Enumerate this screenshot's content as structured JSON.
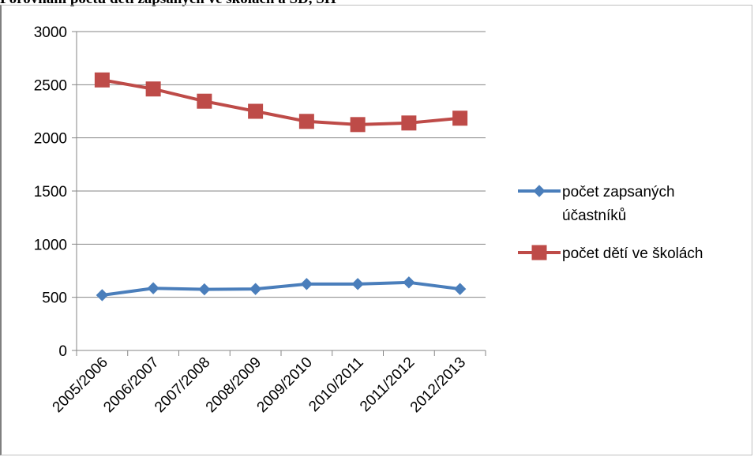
{
  "chart_data": {
    "type": "line",
    "title": "Porovnání počtu dětí zapsaných ve školách a SD, SH",
    "categories": [
      "2005/2006",
      "2006/2007",
      "2007/2008",
      "2008/2009",
      "2009/2010",
      "2010/2011",
      "2011/2012",
      "2012/2013"
    ],
    "series": [
      {
        "name": "počet zapsaných účastníků",
        "name_lines": [
          "počet zapsaných",
          "účastníků"
        ],
        "color": "#4a7ebb",
        "marker": "diamond",
        "values": [
          520,
          585,
          575,
          578,
          625,
          625,
          640,
          578
        ]
      },
      {
        "name": "počet dětí ve školách",
        "name_lines": [
          "počet dětí ve školách"
        ],
        "color": "#be4b48",
        "marker": "square",
        "values": [
          2545,
          2460,
          2345,
          2250,
          2155,
          2125,
          2140,
          2185
        ]
      }
    ],
    "ylim": [
      0,
      3000
    ],
    "yticks": [
      0,
      500,
      1000,
      1500,
      2000,
      2500,
      3000
    ],
    "xlabel": "",
    "ylabel": "",
    "grid": true,
    "legend_position": "right"
  }
}
